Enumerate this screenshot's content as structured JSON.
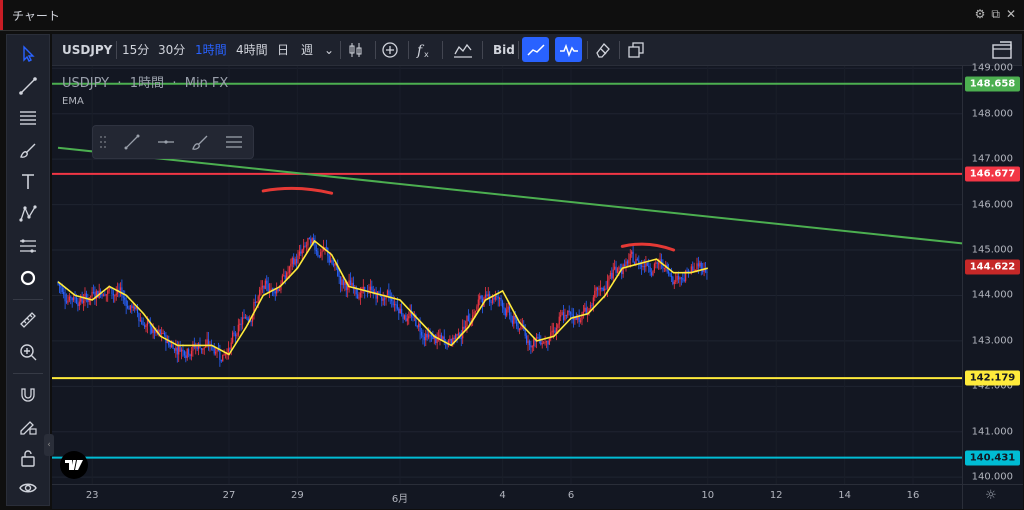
{
  "window": {
    "title": "チャート"
  },
  "toolbar": {
    "symbol": "USDJPY",
    "intervals": [
      "15分",
      "30分",
      "1時間",
      "4時間",
      "日",
      "週"
    ],
    "active_interval": "1時間",
    "bid_label": "Bid"
  },
  "legend": {
    "symbol": "USDJPY",
    "interval": "1時間",
    "source": "Min FX",
    "indicator": "EMA"
  },
  "price_axis": {
    "ticks": [
      "149.000",
      "148.000",
      "147.000",
      "146.000",
      "145.000",
      "144.000",
      "143.000",
      "142.000",
      "141.000",
      "140.000"
    ]
  },
  "time_axis": {
    "ticks": [
      "23",
      "27",
      "29",
      "6月",
      "4",
      "6",
      "10",
      "12",
      "14",
      "16"
    ]
  },
  "price_labels": [
    {
      "text": "148.658",
      "bg": "#4caf50",
      "fg": "#ffffff"
    },
    {
      "text": "146.677",
      "bg": "#f23645",
      "fg": "#ffffff"
    },
    {
      "text": "144.622",
      "bg": "#c62828",
      "fg": "#ffffff"
    },
    {
      "text": "142.179",
      "bg": "#ffeb3b",
      "fg": "#131722"
    },
    {
      "text": "140.431",
      "bg": "#00bcd4",
      "fg": "#131722"
    }
  ],
  "horizontal_lines": [
    {
      "price": 148.658,
      "color": "#4caf50"
    },
    {
      "price": 146.677,
      "color": "#f23645"
    },
    {
      "price": 142.179,
      "color": "#ffeb3b"
    },
    {
      "price": 140.431,
      "color": "#00bcd4"
    }
  ],
  "colors": {
    "up": "#f23645",
    "down": "#2962ff",
    "ema": "#ffeb3b",
    "trendline": "#4caf50",
    "accent": "#2962ff"
  },
  "chart_data": {
    "type": "candlestick",
    "ylim": [
      139.85,
      149.05
    ],
    "current_price": 144.622,
    "ema_approx": [
      [
        "May 22 00:00",
        144.3
      ],
      [
        "May 22 12:00",
        144.0
      ],
      [
        "May 23 00:00",
        143.9
      ],
      [
        "May 23 12:00",
        144.2
      ],
      [
        "May 24 00:00",
        144.0
      ],
      [
        "May 24 12:00",
        143.6
      ],
      [
        "May 25 00:00",
        143.1
      ],
      [
        "May 25 12:00",
        142.9
      ],
      [
        "May 26 00:00",
        142.9
      ],
      [
        "May 26 12:00",
        142.9
      ],
      [
        "May 27 00:00",
        142.7
      ],
      [
        "May 27 12:00",
        143.3
      ],
      [
        "May 28 00:00",
        144.0
      ],
      [
        "May 28 12:00",
        144.2
      ],
      [
        "May 29 00:00",
        144.6
      ],
      [
        "May 29 12:00",
        145.2
      ],
      [
        "May 30 00:00",
        144.9
      ],
      [
        "May 30 12:00",
        144.2
      ],
      [
        "May 31 00:00",
        144.1
      ],
      [
        "May 31 12:00",
        144.0
      ],
      [
        "Jun 1 00:00",
        143.9
      ],
      [
        "Jun 1 12:00",
        143.5
      ],
      [
        "Jun 2 00:00",
        143.1
      ],
      [
        "Jun 2 12:00",
        142.9
      ],
      [
        "Jun 3 00:00",
        143.3
      ],
      [
        "Jun 3 12:00",
        143.9
      ],
      [
        "Jun 4 00:00",
        144.1
      ],
      [
        "Jun 4 12:00",
        143.4
      ],
      [
        "Jun 5 00:00",
        143.0
      ],
      [
        "Jun 5 12:00",
        143.1
      ],
      [
        "Jun 6 00:00",
        143.5
      ],
      [
        "Jun 6 12:00",
        143.6
      ],
      [
        "Jun 7 00:00",
        144.0
      ],
      [
        "Jun 7 12:00",
        144.6
      ],
      [
        "Jun 8 00:00",
        144.7
      ],
      [
        "Jun 8 12:00",
        144.8
      ],
      [
        "Jun 9 00:00",
        144.5
      ],
      [
        "Jun 9 12:00",
        144.5
      ],
      [
        "Jun 10 00:00",
        144.6
      ]
    ],
    "trendline": {
      "start": [
        "May 22 00:00",
        147.25
      ],
      "end": [
        "Jun 18 00:00",
        145.1
      ]
    },
    "annotations": [
      {
        "type": "arc",
        "from": [
          "May 28 00:00",
          146.3
        ],
        "to": [
          "May 30 00:00",
          146.25
        ]
      },
      {
        "type": "arc",
        "from": [
          "Jun 7 12:00",
          145.08
        ],
        "to": [
          "Jun 9 00:00",
          145.0
        ]
      }
    ]
  }
}
